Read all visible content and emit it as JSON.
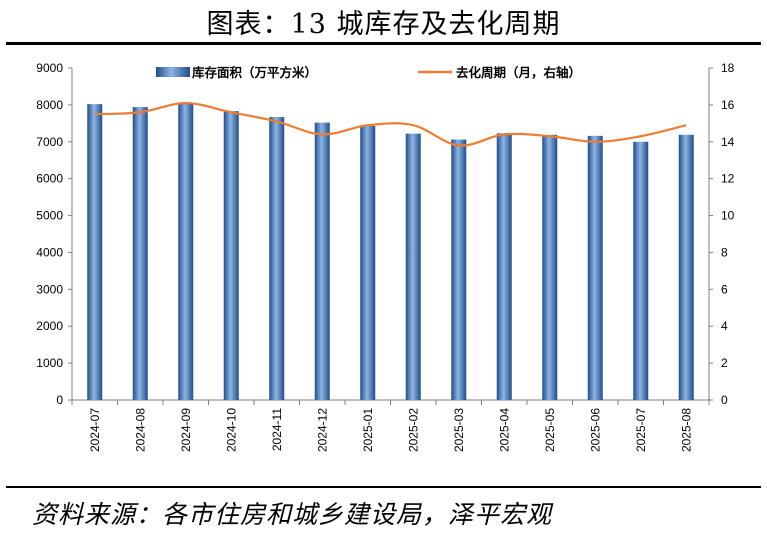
{
  "title": "图表：13 城库存及去化周期",
  "source": "资料来源：各市住房和城乡建设局，泽平宏观",
  "colors": {
    "bar": "#3a6fb0",
    "line": "#ed7d31",
    "axis": "#7f7f7f"
  },
  "chart_data": {
    "type": "bar+line",
    "categories": [
      "2024-07",
      "2024-08",
      "2024-09",
      "2024-10",
      "2024-11",
      "2024-12",
      "2025-01",
      "2025-02",
      "2025-03",
      "2025-04",
      "2025-05",
      "2025-06",
      "2025-07",
      "2025-08"
    ],
    "series": [
      {
        "name": "库存面积（万平方米）",
        "type": "bar",
        "axis": "left",
        "values": [
          8020,
          7940,
          8050,
          7830,
          7670,
          7520,
          7430,
          7220,
          7060,
          7230,
          7190,
          7160,
          7000,
          7190
        ]
      },
      {
        "name": "去化周期（月，右轴）",
        "type": "line",
        "axis": "right",
        "values": [
          15.5,
          15.6,
          16.1,
          15.6,
          15.1,
          14.4,
          14.9,
          14.9,
          13.8,
          14.4,
          14.3,
          14.0,
          14.3,
          14.9
        ]
      }
    ],
    "left_axis": {
      "min": 0,
      "max": 9000,
      "ticks": [
        "0",
        "1000",
        "2000",
        "3000",
        "4000",
        "5000",
        "6000",
        "7000",
        "8000",
        "9000"
      ]
    },
    "right_axis": {
      "min": 0,
      "max": 18,
      "ticks": [
        "0",
        "2",
        "4",
        "6",
        "8",
        "10",
        "12",
        "14",
        "16",
        "18"
      ]
    },
    "grid": false,
    "legend_position": "top"
  }
}
